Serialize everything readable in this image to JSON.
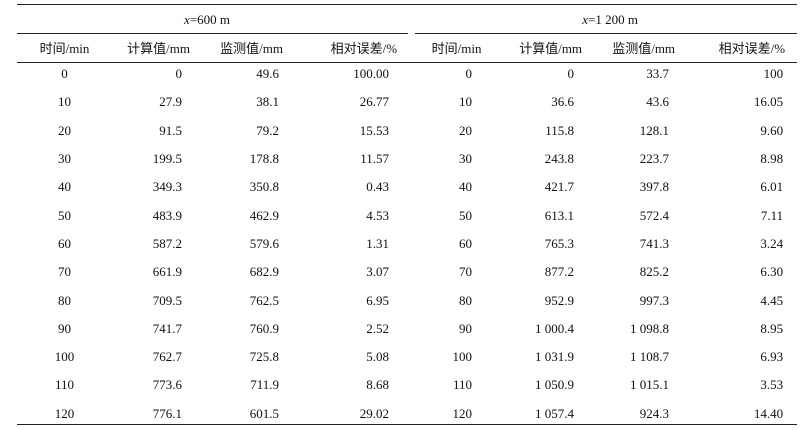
{
  "groups": {
    "left": {
      "var": "x",
      "text": "=600 m"
    },
    "right": {
      "var": "x",
      "text": "=1 200 m"
    }
  },
  "columns": {
    "time": "时间/min",
    "calc": "计算值/mm",
    "monitor": "监测值/mm",
    "error": "相对误差/%"
  },
  "rows": [
    {
      "t1": "0",
      "c1": "0",
      "m1": "49.6",
      "e1": "100.00",
      "t2": "0",
      "c2": "0",
      "m2": "33.7",
      "e2": "100"
    },
    {
      "t1": "10",
      "c1": "27.9",
      "m1": "38.1",
      "e1": "26.77",
      "t2": "10",
      "c2": "36.6",
      "m2": "43.6",
      "e2": "16.05"
    },
    {
      "t1": "20",
      "c1": "91.5",
      "m1": "79.2",
      "e1": "15.53",
      "t2": "20",
      "c2": "115.8",
      "m2": "128.1",
      "e2": "9.60"
    },
    {
      "t1": "30",
      "c1": "199.5",
      "m1": "178.8",
      "e1": "11.57",
      "t2": "30",
      "c2": "243.8",
      "m2": "223.7",
      "e2": "8.98"
    },
    {
      "t1": "40",
      "c1": "349.3",
      "m1": "350.8",
      "e1": "0.43",
      "t2": "40",
      "c2": "421.7",
      "m2": "397.8",
      "e2": "6.01"
    },
    {
      "t1": "50",
      "c1": "483.9",
      "m1": "462.9",
      "e1": "4.53",
      "t2": "50",
      "c2": "613.1",
      "m2": "572.4",
      "e2": "7.11"
    },
    {
      "t1": "60",
      "c1": "587.2",
      "m1": "579.6",
      "e1": "1.31",
      "t2": "60",
      "c2": "765.3",
      "m2": "741.3",
      "e2": "3.24"
    },
    {
      "t1": "70",
      "c1": "661.9",
      "m1": "682.9",
      "e1": "3.07",
      "t2": "70",
      "c2": "877.2",
      "m2": "825.2",
      "e2": "6.30"
    },
    {
      "t1": "80",
      "c1": "709.5",
      "m1": "762.5",
      "e1": "6.95",
      "t2": "80",
      "c2": "952.9",
      "m2": "997.3",
      "e2": "4.45"
    },
    {
      "t1": "90",
      "c1": "741.7",
      "m1": "760.9",
      "e1": "2.52",
      "t2": "90",
      "c2": "1 000.4",
      "m2": "1 098.8",
      "e2": "8.95"
    },
    {
      "t1": "100",
      "c1": "762.7",
      "m1": "725.8",
      "e1": "5.08",
      "t2": "100",
      "c2": "1 031.9",
      "m2": "1 108.7",
      "e2": "6.93"
    },
    {
      "t1": "110",
      "c1": "773.6",
      "m1": "711.9",
      "e1": "8.68",
      "t2": "110",
      "c2": "1 050.9",
      "m2": "1 015.1",
      "e2": "3.53"
    },
    {
      "t1": "120",
      "c1": "776.1",
      "m1": "601.5",
      "e1": "29.02",
      "t2": "120",
      "c2": "1 057.4",
      "m2": "924.3",
      "e2": "14.40"
    }
  ]
}
